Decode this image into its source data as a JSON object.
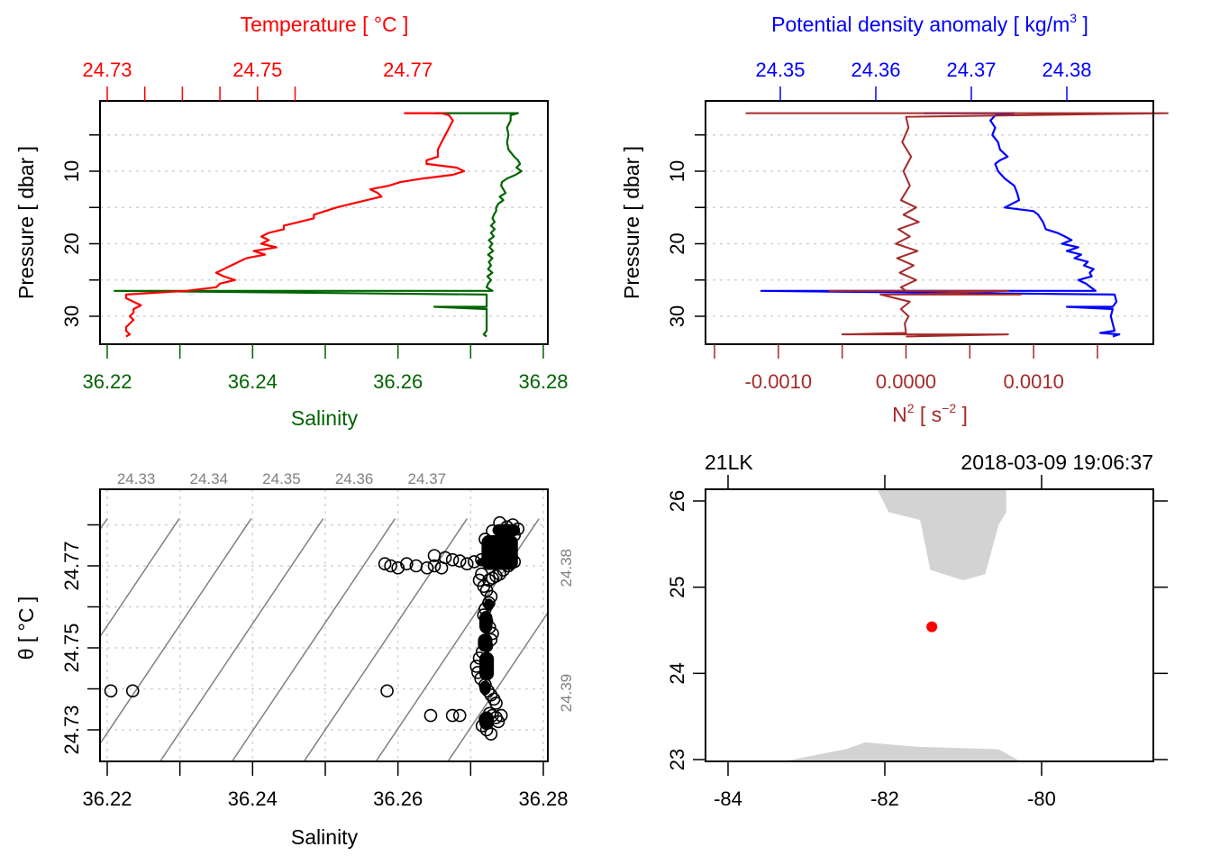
{
  "colors": {
    "temperature": "#ff0000",
    "salinity": "#006400",
    "n2": "#a52a2a",
    "density": "#0000ff",
    "isopycnal": "#808080",
    "land": "#d3d3d3",
    "station": "#ff0000",
    "grid": "#d3d3d3",
    "frame": "#000000"
  },
  "chart_data": [
    {
      "id": "salinity-temperature-profile",
      "type": "line",
      "title": "",
      "top_axis_title": "Temperature [ °C ]",
      "bottom_axis_title": "Salinity",
      "ylabel": "Pressure [ dbar ]",
      "top_ticks": [
        "24.73",
        "24.75",
        "24.77"
      ],
      "top_tick_values": [
        24.73,
        24.735,
        24.74,
        24.745,
        24.75,
        24.755
      ],
      "bottom_ticks": [
        "36.22",
        "36.24",
        "36.26",
        "36.28"
      ],
      "bottom_tick_values": [
        36.22,
        36.23,
        36.24,
        36.25,
        36.26,
        36.27,
        36.28
      ],
      "y_ticks": [
        "10",
        "20",
        "30"
      ],
      "y_tick_values": [
        5,
        10,
        15,
        20,
        25,
        30
      ],
      "ylim": [
        34,
        0
      ],
      "salinity_lim": [
        36.22,
        36.28
      ],
      "temperature_lim": [
        24.73,
        24.78
      ],
      "grid": true,
      "series": [
        {
          "name": "Temperature",
          "axis": "top",
          "pressure": [
            2.0,
            2.0,
            2.3,
            3.0,
            4.0,
            5.0,
            6.0,
            7.0,
            8.0,
            8.5,
            9.0,
            9.5,
            10.0,
            10.5,
            11.0,
            11.5,
            12.0,
            12.5,
            13.0,
            13.5,
            14.0,
            14.5,
            15.0,
            15.5,
            16.0,
            16.5,
            17.0,
            17.5,
            18.0,
            18.5,
            19.0,
            19.5,
            20.0,
            20.5,
            21.0,
            21.5,
            22.0,
            22.5,
            23.0,
            23.5,
            24.0,
            24.5,
            25.0,
            25.5,
            26.0,
            26.5,
            27.0,
            27.5,
            28.0,
            28.5,
            29.0,
            29.5,
            30.0,
            30.5,
            31.0,
            31.5,
            32.0,
            32.5,
            32.8
          ],
          "values": [
            24.7695,
            24.7745,
            24.7755,
            24.776,
            24.7755,
            24.775,
            24.7745,
            24.774,
            24.774,
            24.7725,
            24.7725,
            24.7765,
            24.7775,
            24.776,
            24.772,
            24.769,
            24.7675,
            24.765,
            24.766,
            24.7665,
            24.7645,
            24.7625,
            24.7605,
            24.759,
            24.7575,
            24.7575,
            24.7555,
            24.7535,
            24.7535,
            24.7515,
            24.7505,
            24.7515,
            24.7505,
            24.7525,
            24.7495,
            24.751,
            24.7485,
            24.7475,
            24.7465,
            24.7455,
            24.7445,
            24.7455,
            24.747,
            24.745,
            24.7445,
            24.7405,
            24.7325,
            24.7325,
            24.7335,
            24.7345,
            24.7335,
            24.7335,
            24.733,
            24.7335,
            24.733,
            24.7325,
            24.7325,
            24.733,
            24.7325
          ]
        },
        {
          "name": "Salinity",
          "axis": "bottom",
          "pressure": [
            2.0,
            2.0,
            2.3,
            3.0,
            4.0,
            5.0,
            6.0,
            7.0,
            8.0,
            8.5,
            9.0,
            9.5,
            10.0,
            10.5,
            11.0,
            11.5,
            12.0,
            12.5,
            13.0,
            13.5,
            14.0,
            14.5,
            15.0,
            15.5,
            16.0,
            16.5,
            17.0,
            17.5,
            18.0,
            18.5,
            19.0,
            19.5,
            20.0,
            20.5,
            21.0,
            21.5,
            22.0,
            22.5,
            23.0,
            23.5,
            24.0,
            24.5,
            25.0,
            25.5,
            26.0,
            26.5,
            26.5,
            27.0,
            28.0,
            28.7,
            28.7,
            29.0,
            30.0,
            31.0,
            32.0,
            32.5,
            32.8
          ],
          "values": [
            36.265,
            36.2765,
            36.2755,
            36.2755,
            36.275,
            36.2752,
            36.275,
            36.2752,
            36.276,
            36.2765,
            36.2768,
            36.2763,
            36.277,
            36.2762,
            36.275,
            36.2743,
            36.2742,
            36.2745,
            36.2748,
            36.274,
            36.2745,
            36.2738,
            36.2735,
            36.2735,
            36.2732,
            36.273,
            36.2733,
            36.2728,
            36.2733,
            36.2728,
            36.2732,
            36.2725,
            36.273,
            36.2726,
            36.2731,
            36.2724,
            36.273,
            36.2725,
            36.2728,
            36.2724,
            36.273,
            36.2723,
            36.2728,
            36.2724,
            36.2722,
            36.273,
            36.221,
            36.2722,
            36.2722,
            36.2722,
            36.265,
            36.2722,
            36.2722,
            36.2722,
            36.2722,
            36.2718,
            36.2722
          ]
        }
      ]
    },
    {
      "id": "n2-density-profile",
      "type": "line",
      "top_axis_title": "Potential density anomaly [ kg/m",
      "top_axis_title_sup": "3",
      "top_axis_title_end": " ]",
      "bottom_axis_title_base": "N",
      "bottom_axis_title_sup": "2",
      "bottom_axis_title_mid": " [ s",
      "bottom_axis_title_sup2": "−2",
      "bottom_axis_title_end": " ]",
      "ylabel": "Pressure [ dbar ]",
      "top_ticks": [
        "24.35",
        "24.36",
        "24.37",
        "24.38"
      ],
      "top_tick_values": [
        24.35,
        24.36,
        24.37,
        24.38
      ],
      "bottom_ticks": [
        "-0.0010",
        "0.0000",
        "0.0010"
      ],
      "bottom_tick_values": [
        -0.0015,
        -0.001,
        -0.0005,
        0.0,
        0.0005,
        0.001,
        0.0015
      ],
      "y_ticks": [
        "10",
        "20",
        "30"
      ],
      "y_tick_values": [
        5,
        10,
        15,
        20,
        25,
        30
      ],
      "ylim": [
        34,
        0
      ],
      "n2_lim": [
        -0.0015,
        0.0015
      ],
      "density_lim": [
        24.35,
        24.38
      ],
      "grid": true,
      "series": [
        {
          "name": "N2",
          "axis": "bottom",
          "pressure": [
            2.0,
            2.0,
            2.0,
            2.5,
            4,
            6,
            8,
            10,
            12,
            14,
            15,
            16,
            17,
            18,
            19,
            20,
            21,
            22,
            23,
            24,
            25,
            26,
            26.5,
            26.5,
            26.5,
            27.0,
            27.0,
            27.0,
            28,
            29,
            30,
            31,
            32.3,
            32.5,
            32.5,
            32.8
          ],
          "values": [
            0.0,
            -0.00125,
            0.00205,
            0.0,
            2e-05,
            -3e-05,
            4e-05,
            -2e-05,
            3e-05,
            -4e-05,
            8e-05,
            -2e-05,
            0.0001,
            -6e-05,
            3e-05,
            -8e-05,
            9e-05,
            -7e-05,
            6e-05,
            -5e-05,
            8e-05,
            -4e-05,
            0.0,
            -0.0006,
            0.0008,
            0.0,
            0.0009,
            -0.0002,
            3e-05,
            -4e-05,
            2e-05,
            -1e-05,
            0.0,
            -0.0005,
            0.0008,
            0.0
          ]
        },
        {
          "name": "Potential density anomaly",
          "axis": "top",
          "pressure": [
            2.0,
            2.0,
            2.3,
            3.0,
            4.0,
            5.0,
            6.0,
            7.0,
            8.0,
            8.5,
            9.0,
            10.0,
            11.0,
            12.0,
            13.0,
            14.0,
            15.0,
            15.5,
            16.0,
            17.0,
            18.0,
            18.5,
            19.0,
            19.5,
            20.0,
            20.5,
            21.0,
            21.5,
            22.0,
            22.5,
            23.0,
            23.5,
            24.0,
            24.5,
            25.0,
            25.5,
            26.0,
            26.5,
            26.5,
            27.0,
            28.0,
            28.7,
            28.7,
            29.0,
            30.0,
            31.0,
            32.0,
            32.3,
            32.5,
            32.8
          ],
          "values": [
            24.365,
            24.3745,
            24.3725,
            24.372,
            24.3725,
            24.3722,
            24.3728,
            24.373,
            24.3738,
            24.373,
            24.3725,
            24.3728,
            24.3735,
            24.3745,
            24.3748,
            24.375,
            24.3735,
            24.3765,
            24.377,
            24.3775,
            24.3778,
            24.379,
            24.3798,
            24.3805,
            24.3795,
            24.3812,
            24.38,
            24.3815,
            24.3808,
            24.3822,
            24.3818,
            24.3828,
            24.3824,
            24.3826,
            24.3812,
            24.382,
            24.3825,
            24.383,
            24.348,
            24.385,
            24.3852,
            24.3848,
            24.38,
            24.3848,
            24.3846,
            24.3848,
            24.385,
            24.3835,
            24.3855,
            24.3848
          ]
        }
      ]
    },
    {
      "id": "ts-diagram",
      "type": "scatter",
      "xlabel": "Salinity",
      "ylabel": "θ [ °C ]",
      "x_ticks": [
        "36.22",
        "36.24",
        "36.26",
        "36.28"
      ],
      "x_tick_values": [
        36.22,
        36.23,
        36.24,
        36.25,
        36.26,
        36.27,
        36.28
      ],
      "y_ticks": [
        "24.73",
        "24.75",
        "24.77"
      ],
      "y_tick_values": [
        24.73,
        24.74,
        24.75,
        24.76,
        24.77,
        24.78
      ],
      "xlim": [
        36.219,
        36.28
      ],
      "ylim": [
        24.7275,
        24.7815
      ],
      "grid": true,
      "isopycnal_labels_top": [
        "24.33",
        "24.34",
        "24.35",
        "24.36",
        "24.37"
      ],
      "isopycnal_labels_right": [
        "24.38",
        "24.39"
      ],
      "isopycnal_values": [
        24.32,
        24.33,
        24.34,
        24.35,
        24.36,
        24.37,
        24.38,
        24.39
      ],
      "isopycnal_slope_dT_dS": 2.64,
      "isopycnal_ref": {
        "salinity": 36.2695,
        "theta": 24.7815,
        "sigma": 24.37
      },
      "points": {
        "salinity": [
          36.2205,
          36.2235,
          36.2585,
          36.2645,
          36.2675,
          36.2685,
          36.2582,
          36.259,
          36.26,
          36.2612,
          36.2625,
          36.264,
          36.265,
          36.266,
          36.265,
          36.2665,
          36.2675,
          36.2685,
          36.2695,
          36.2705,
          36.2715,
          36.2725,
          36.2735,
          36.2745,
          36.2755,
          36.276,
          36.2765,
          36.2758,
          36.275,
          36.274,
          36.273,
          36.272,
          36.2715,
          36.2712,
          36.2718,
          36.2722,
          36.2728,
          36.2725,
          36.272,
          36.2718,
          36.2722,
          36.2726,
          36.273,
          36.2728,
          36.2722,
          36.2716,
          36.2712,
          36.2708,
          36.271,
          36.2714,
          36.272,
          36.2724,
          36.2728,
          36.2732,
          36.2735,
          36.2726,
          36.272,
          36.2716,
          36.2722,
          36.2728,
          36.273,
          36.2735,
          36.2738,
          36.2742,
          36.2748,
          36.2752,
          36.2756,
          36.276,
          36.2752,
          36.2745,
          36.274,
          36.2735,
          36.273,
          36.2725
        ],
        "theta": [
          24.7395,
          24.7395,
          24.7395,
          24.7335,
          24.7335,
          24.7335,
          24.7705,
          24.77,
          24.7695,
          24.7705,
          24.77,
          24.7695,
          24.77,
          24.7695,
          24.7725,
          24.772,
          24.7715,
          24.7712,
          24.7705,
          24.771,
          24.7715,
          24.7718,
          24.7722,
          24.7738,
          24.7755,
          24.7775,
          24.779,
          24.78,
          24.7795,
          24.7805,
          24.7785,
          24.7765,
          24.768,
          24.7665,
          24.765,
          24.764,
          24.7625,
          24.761,
          24.7595,
          24.758,
          24.7565,
          24.755,
          24.7535,
          24.752,
          24.7505,
          24.749,
          24.7475,
          24.7455,
          24.744,
          24.7425,
          24.741,
          24.7395,
          24.7385,
          24.7375,
          24.7365,
          24.734,
          24.7325,
          24.731,
          24.73,
          24.729,
          24.7335,
          24.733,
          24.732,
          24.7335,
          24.774,
          24.773,
          24.772,
          24.771,
          24.77,
          24.769,
          24.768,
          24.7675,
          24.767,
          24.7665
        ]
      }
    },
    {
      "id": "station-map",
      "type": "scatter",
      "top_left_label": "21LK",
      "top_right_label": "2018-03-09 19:06:37",
      "x_ticks": [
        "-84",
        "-82",
        "-80"
      ],
      "x_tick_values": [
        -84,
        -82,
        -80
      ],
      "y_ticks": [
        "23",
        "24",
        "25",
        "26"
      ],
      "y_tick_values": [
        23,
        24,
        25,
        26
      ],
      "xlim": [
        -84.3,
        -78.6
      ],
      "ylim": [
        22.97,
        26.14
      ],
      "grid": false,
      "station": {
        "longitude": -81.4,
        "latitude": 24.54
      },
      "land": [
        {
          "name": "florida",
          "lon": [
            -82.1,
            -81.95,
            -81.55,
            -81.42,
            -81.0,
            -80.72,
            -80.55,
            -80.45,
            -80.45,
            -82.1
          ],
          "lat": [
            26.14,
            25.87,
            25.78,
            25.2,
            25.08,
            25.15,
            25.72,
            25.87,
            26.14,
            26.14
          ]
        },
        {
          "name": "cuba",
          "lon": [
            -83.35,
            -82.5,
            -82.25,
            -81.6,
            -80.55,
            -80.25,
            -83.35
          ],
          "lat": [
            22.97,
            23.12,
            23.2,
            23.15,
            23.12,
            22.97,
            22.97
          ]
        }
      ]
    }
  ]
}
